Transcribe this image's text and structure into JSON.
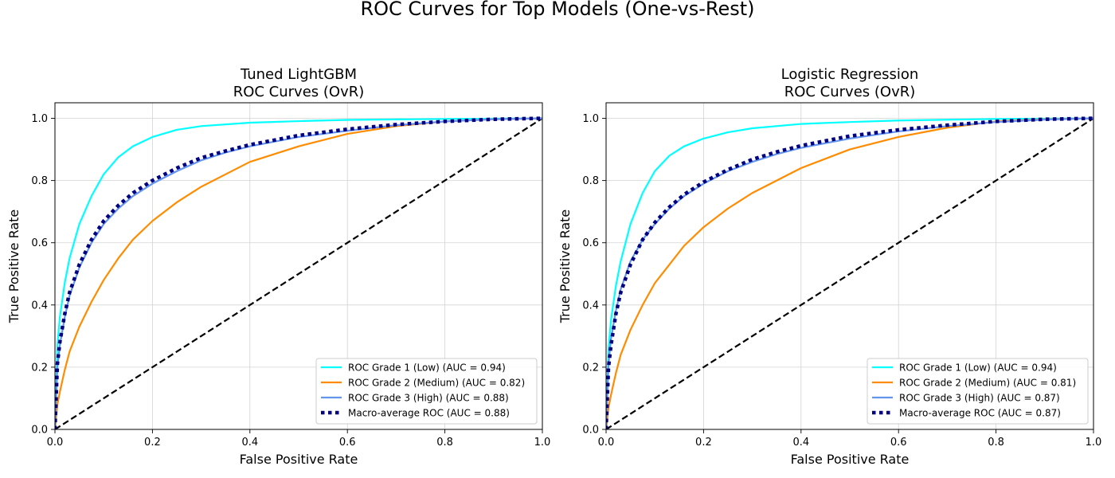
{
  "figure": {
    "suptitle": "ROC Curves for Top Models (One-vs-Rest)"
  },
  "chart_data": [
    {
      "type": "line",
      "title": [
        "Tuned LightGBM",
        "ROC Curves (OvR)"
      ],
      "xlabel": "False Positive Rate",
      "ylabel": "True Positive Rate",
      "xlim": [
        0.0,
        1.0
      ],
      "ylim": [
        0.0,
        1.05
      ],
      "xticks": [
        "0.0",
        "0.2",
        "0.4",
        "0.6",
        "0.8",
        "1.0"
      ],
      "yticks": [
        "0.0",
        "0.2",
        "0.4",
        "0.6",
        "0.8",
        "1.0"
      ],
      "grid": true,
      "legend_position": "lower-right",
      "series": [
        {
          "name": "ROC Grade 1 (Low) (AUC = 0.94)",
          "color": "#00ffff",
          "style": "solid",
          "x": [
            0,
            0.005,
            0.01,
            0.02,
            0.03,
            0.05,
            0.075,
            0.1,
            0.13,
            0.16,
            0.2,
            0.25,
            0.3,
            0.4,
            0.5,
            0.6,
            0.8,
            1.0
          ],
          "y": [
            0,
            0.27,
            0.36,
            0.47,
            0.55,
            0.66,
            0.75,
            0.82,
            0.875,
            0.91,
            0.94,
            0.963,
            0.975,
            0.986,
            0.991,
            0.995,
            0.998,
            1.0
          ]
        },
        {
          "name": "ROC Grade 2 (Medium) (AUC = 0.82)",
          "color": "#ff8c00",
          "style": "solid",
          "x": [
            0,
            0.005,
            0.01,
            0.02,
            0.03,
            0.05,
            0.075,
            0.1,
            0.13,
            0.16,
            0.2,
            0.25,
            0.3,
            0.35,
            0.4,
            0.5,
            0.6,
            0.7,
            0.8,
            0.9,
            1.0
          ],
          "y": [
            0,
            0.08,
            0.12,
            0.19,
            0.25,
            0.33,
            0.41,
            0.48,
            0.55,
            0.61,
            0.67,
            0.73,
            0.78,
            0.82,
            0.86,
            0.91,
            0.95,
            0.975,
            0.99,
            0.997,
            1.0
          ]
        },
        {
          "name": "ROC Grade 3 (High) (AUC = 0.88)",
          "color": "#6495ed",
          "style": "solid",
          "x": [
            0,
            0.005,
            0.01,
            0.02,
            0.03,
            0.05,
            0.075,
            0.1,
            0.13,
            0.16,
            0.2,
            0.25,
            0.3,
            0.35,
            0.4,
            0.5,
            0.6,
            0.7,
            0.8,
            0.9,
            1.0
          ],
          "y": [
            0,
            0.2,
            0.27,
            0.36,
            0.43,
            0.52,
            0.6,
            0.66,
            0.71,
            0.75,
            0.79,
            0.83,
            0.865,
            0.89,
            0.91,
            0.94,
            0.96,
            0.978,
            0.99,
            0.997,
            1.0
          ]
        },
        {
          "name": "Macro-average ROC (AUC = 0.88)",
          "color": "#000080",
          "style": "dotted",
          "x": [
            0,
            0.005,
            0.01,
            0.02,
            0.03,
            0.05,
            0.075,
            0.1,
            0.13,
            0.16,
            0.2,
            0.25,
            0.3,
            0.35,
            0.4,
            0.5,
            0.6,
            0.7,
            0.8,
            0.9,
            1.0
          ],
          "y": [
            0,
            0.21,
            0.28,
            0.37,
            0.44,
            0.53,
            0.61,
            0.67,
            0.72,
            0.76,
            0.8,
            0.84,
            0.873,
            0.895,
            0.915,
            0.945,
            0.965,
            0.98,
            0.99,
            0.997,
            1.0
          ]
        },
        {
          "name": "",
          "color": "#000000",
          "style": "dashed",
          "x": [
            0,
            1
          ],
          "y": [
            0,
            1
          ]
        }
      ]
    },
    {
      "type": "line",
      "title": [
        "Logistic Regression",
        "ROC Curves (OvR)"
      ],
      "xlabel": "False Positive Rate",
      "ylabel": "True Positive Rate",
      "xlim": [
        0.0,
        1.0
      ],
      "ylim": [
        0.0,
        1.05
      ],
      "xticks": [
        "0.0",
        "0.2",
        "0.4",
        "0.6",
        "0.8",
        "1.0"
      ],
      "yticks": [
        "0.0",
        "0.2",
        "0.4",
        "0.6",
        "0.8",
        "1.0"
      ],
      "grid": true,
      "legend_position": "lower-right",
      "series": [
        {
          "name": "ROC Grade 1 (Low) (AUC = 0.94)",
          "color": "#00ffff",
          "style": "solid",
          "x": [
            0,
            0.005,
            0.01,
            0.02,
            0.03,
            0.05,
            0.075,
            0.1,
            0.13,
            0.16,
            0.2,
            0.25,
            0.3,
            0.4,
            0.5,
            0.6,
            0.8,
            1.0
          ],
          "y": [
            0,
            0.26,
            0.35,
            0.46,
            0.54,
            0.66,
            0.76,
            0.83,
            0.88,
            0.91,
            0.935,
            0.955,
            0.968,
            0.982,
            0.988,
            0.993,
            0.998,
            1.0
          ]
        },
        {
          "name": "ROC Grade 2 (Medium) (AUC = 0.81)",
          "color": "#ff8c00",
          "style": "solid",
          "x": [
            0,
            0.005,
            0.01,
            0.02,
            0.03,
            0.05,
            0.075,
            0.1,
            0.13,
            0.16,
            0.2,
            0.25,
            0.3,
            0.35,
            0.4,
            0.5,
            0.6,
            0.7,
            0.8,
            0.9,
            1.0
          ],
          "y": [
            0,
            0.07,
            0.11,
            0.18,
            0.24,
            0.32,
            0.4,
            0.47,
            0.53,
            0.59,
            0.65,
            0.71,
            0.76,
            0.8,
            0.84,
            0.9,
            0.94,
            0.97,
            0.99,
            0.997,
            1.0
          ]
        },
        {
          "name": "ROC Grade 3 (High) (AUC = 0.87)",
          "color": "#6495ed",
          "style": "solid",
          "x": [
            0,
            0.005,
            0.01,
            0.02,
            0.03,
            0.05,
            0.075,
            0.1,
            0.13,
            0.16,
            0.2,
            0.25,
            0.3,
            0.35,
            0.4,
            0.5,
            0.6,
            0.7,
            0.8,
            0.9,
            1.0
          ],
          "y": [
            0,
            0.21,
            0.29,
            0.38,
            0.45,
            0.54,
            0.61,
            0.66,
            0.71,
            0.75,
            0.79,
            0.83,
            0.86,
            0.885,
            0.905,
            0.935,
            0.958,
            0.975,
            0.988,
            0.996,
            1.0
          ]
        },
        {
          "name": "Macro-average ROC (AUC = 0.87)",
          "color": "#000080",
          "style": "dotted",
          "x": [
            0,
            0.005,
            0.01,
            0.02,
            0.03,
            0.05,
            0.075,
            0.1,
            0.13,
            0.16,
            0.2,
            0.25,
            0.3,
            0.35,
            0.4,
            0.5,
            0.6,
            0.7,
            0.8,
            0.9,
            1.0
          ],
          "y": [
            0,
            0.2,
            0.27,
            0.37,
            0.44,
            0.53,
            0.61,
            0.665,
            0.715,
            0.755,
            0.795,
            0.835,
            0.868,
            0.892,
            0.912,
            0.943,
            0.963,
            0.978,
            0.99,
            0.997,
            1.0
          ]
        },
        {
          "name": "",
          "color": "#000000",
          "style": "dashed",
          "x": [
            0,
            1
          ],
          "y": [
            0,
            1
          ]
        }
      ]
    }
  ]
}
